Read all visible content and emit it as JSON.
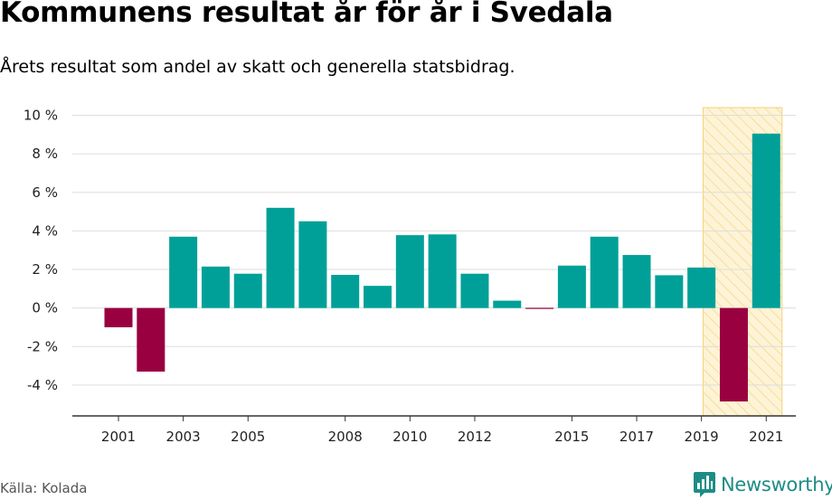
{
  "title": "Kommunens resultat år för år i Svedala",
  "subtitle": "Årets resultat som andel av skatt och generella statsbidrag.",
  "source": "Källa: Kolada",
  "brand": {
    "name": "Newsworthy",
    "logo_icon": "newsworthy-bar-chart-logo-icon",
    "color": "#1e8c86"
  },
  "colors": {
    "positive": "#00a098",
    "negative": "#990040",
    "highlight_fill": "#fdf3d6",
    "highlight_hatch": "#f5d27a",
    "grid": "#dddddd",
    "axis": "#333333"
  },
  "chart_data": {
    "type": "bar",
    "x": [
      2001,
      2002,
      2003,
      2004,
      2005,
      2006,
      2007,
      2008,
      2009,
      2010,
      2011,
      2012,
      2013,
      2014,
      2015,
      2016,
      2017,
      2018,
      2019,
      2020,
      2021
    ],
    "values": [
      -1.0,
      -3.3,
      3.7,
      2.15,
      1.78,
      5.2,
      4.5,
      1.72,
      1.15,
      3.78,
      3.82,
      1.78,
      0.38,
      -0.05,
      2.2,
      3.7,
      2.75,
      1.7,
      2.1,
      -4.85,
      9.05
    ],
    "xticks": [
      "2001",
      "2003",
      "2005",
      "2008",
      "2010",
      "2012",
      "2015",
      "2017",
      "2019",
      "2021"
    ],
    "yticks": [
      "10 %",
      "8 %",
      "6 %",
      "4 %",
      "2 %",
      "0 %",
      "-2 %",
      "-4 %"
    ],
    "ylim": [
      -5.6,
      10.4
    ],
    "highlight_range": [
      2020,
      2021
    ],
    "grid": true,
    "legend": false
  }
}
